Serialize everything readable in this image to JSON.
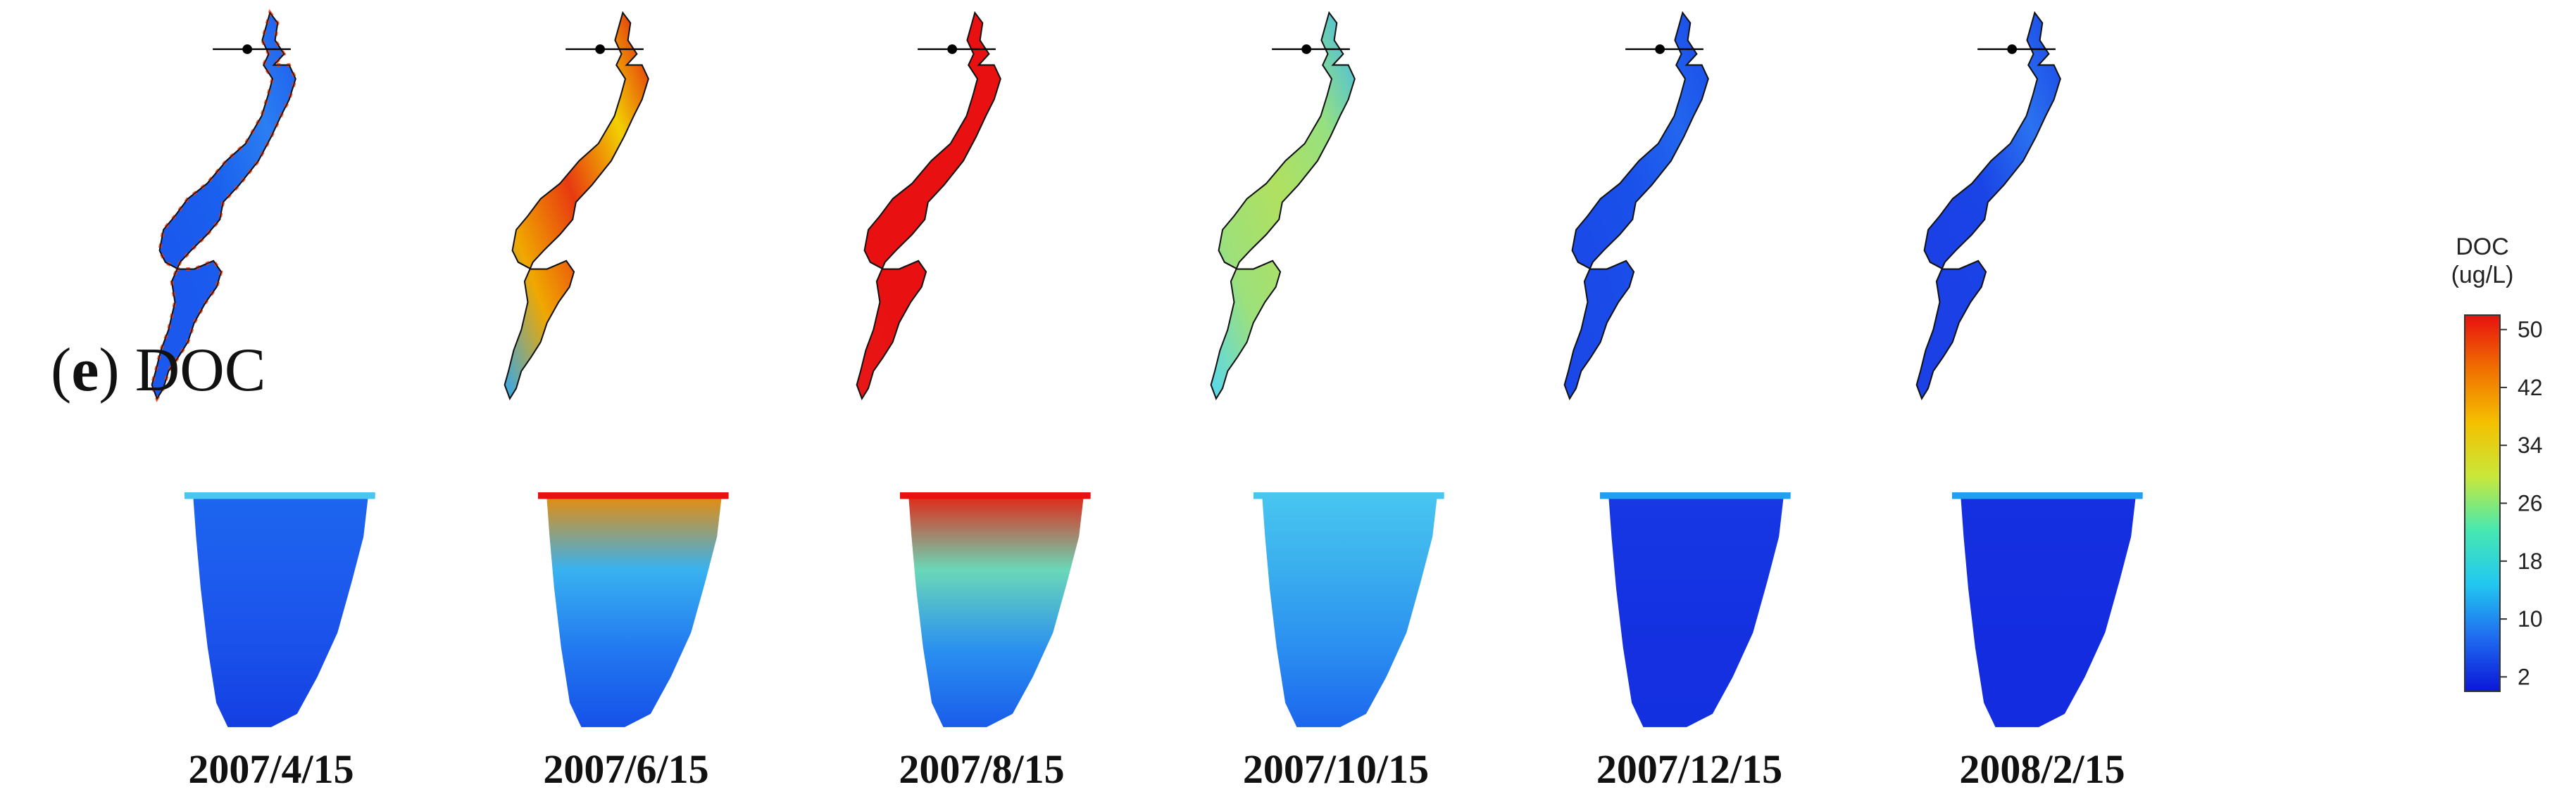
{
  "panel": {
    "letter": "e",
    "name": "DOC"
  },
  "colorbar": {
    "title_line1": "DOC",
    "title_line2": "(ug/L)",
    "ticks": [
      2,
      10,
      18,
      26,
      34,
      42,
      50
    ],
    "range": [
      0,
      52
    ],
    "colormap": [
      "#0a16d8",
      "#1f6bf0",
      "#22c8f0",
      "#47e8b0",
      "#c8e83a",
      "#f5c000",
      "#f07000",
      "#e81010"
    ]
  },
  "snapshots": [
    {
      "date": "2007/4/15",
      "map_level": 9,
      "section_level": 8,
      "surface_level": 15,
      "shore_hot": true,
      "map_colors": [
        "#1a58ee",
        "#1a58ee",
        "#1a60ee",
        "#2a7ef2",
        "#1c5aee"
      ],
      "section_colors": [
        "#1c66ee",
        "#1d5cee",
        "#1a50ea",
        "#143fe2"
      ]
    },
    {
      "date": "2007/6/15",
      "map_level": 38,
      "section_level": 14,
      "surface_level": 44,
      "shore_hot": false,
      "map_colors": [
        "#30a8f0",
        "#f0a800",
        "#e83a10",
        "#f2d000",
        "#e01010"
      ],
      "section_colors": [
        "#f08a00",
        "#38b2f0",
        "#2278f0",
        "#1550e8"
      ]
    },
    {
      "date": "2007/8/15",
      "map_level": 50,
      "section_level": 17,
      "surface_level": 50,
      "shore_hot": false,
      "map_colors": [
        "#e81818",
        "#e81010",
        "#e81010",
        "#e81010",
        "#e81010"
      ],
      "section_colors": [
        "#e82010",
        "#6ad8b8",
        "#2a90f0",
        "#1a5cea"
      ]
    },
    {
      "date": "2007/10/15",
      "map_level": 24,
      "section_level": 11,
      "surface_level": 16,
      "shore_hot": false,
      "map_colors": [
        "#55d8f2",
        "#9de07a",
        "#b0e060",
        "#96e080",
        "#3cb8f0"
      ],
      "section_colors": [
        "#48c6f0",
        "#3aaeee",
        "#2a8ef0",
        "#1c66ee"
      ]
    },
    {
      "date": "2007/12/15",
      "map_level": 6,
      "section_level": 5,
      "surface_level": 9,
      "shore_hot": false,
      "map_colors": [
        "#1a48e8",
        "#1a4ae8",
        "#1a50ea",
        "#2266ee",
        "#1a48e8"
      ],
      "section_colors": [
        "#1838e4",
        "#1534e2",
        "#1430e0",
        "#1330e0"
      ]
    },
    {
      "date": "2008/2/15",
      "map_level": 5,
      "section_level": 4,
      "surface_level": 10,
      "shore_hot": false,
      "map_colors": [
        "#1a40e6",
        "#1a40e6",
        "#1a44e6",
        "#2a72f0",
        "#1a44e6"
      ],
      "section_colors": [
        "#1530e0",
        "#142ee0",
        "#132ce0",
        "#132ce0"
      ]
    }
  ]
}
